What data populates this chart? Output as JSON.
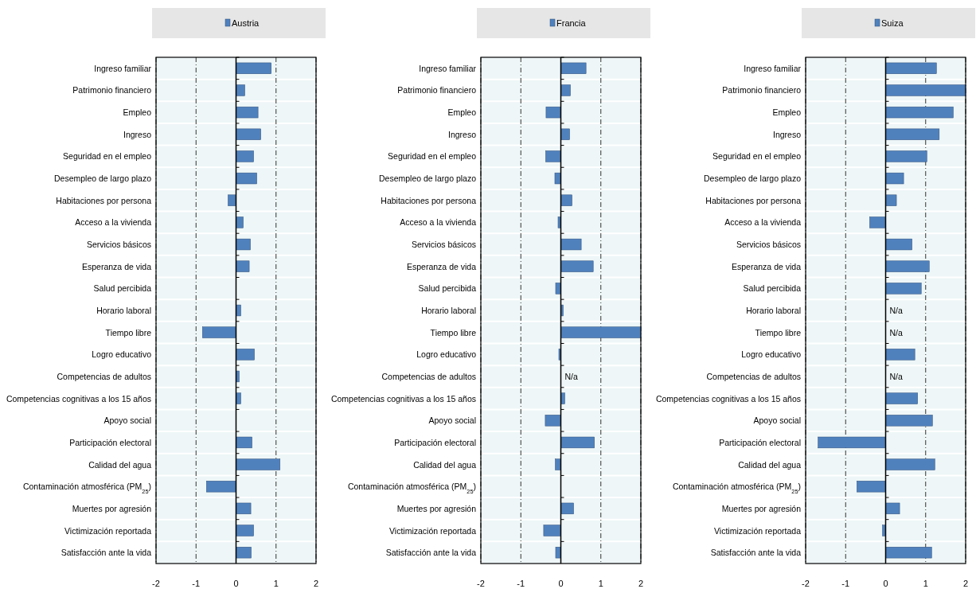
{
  "chart_data": [
    {
      "type": "bar",
      "orientation": "horizontal",
      "categories": [
        "Ingreso familiar",
        "Patrimonio financiero",
        "Empleo",
        "Ingreso",
        "Seguridad en el empleo",
        "Desempleo de largo plazo",
        "Habitaciones por persona",
        "Acceso a la vivienda",
        "Servicios básicos",
        "Esperanza de vida",
        "Salud percibida",
        "Horario laboral",
        "Tiempo libre",
        "Logro educativo",
        "Competencias de adultos",
        "Competencias cognitivas a los 15 años",
        "Apoyo social",
        "Participación electoral",
        "Calidad del agua",
        "Contaminación atmosférica (PM$_{25}$)",
        "Muertes por agresión",
        "Victimización reportada",
        "Satisfacción ante la vida"
      ],
      "series": [
        {
          "name": "Austria",
          "color": "#4f81bd",
          "values": [
            0.88,
            0.22,
            0.55,
            0.62,
            0.44,
            0.52,
            -0.2,
            0.18,
            0.36,
            0.33,
            0,
            0.12,
            -0.84,
            0.46,
            0.08,
            0.12,
            0,
            0.4,
            1.1,
            -0.74,
            0.37,
            0.44,
            0.38
          ]
        }
      ],
      "xlim": [
        -2,
        2
      ],
      "xticks": [
        -2,
        -1,
        0,
        1,
        2
      ],
      "grid": "x",
      "legend": "top"
    },
    {
      "type": "bar",
      "orientation": "horizontal",
      "categories": [
        "Ingreso familiar",
        "Patrimonio financiero",
        "Empleo",
        "Ingreso",
        "Seguridad en el empleo",
        "Desempleo de largo plazo",
        "Habitaciones por persona",
        "Acceso a la vivienda",
        "Servicios básicos",
        "Esperanza de vida",
        "Salud percibida",
        "Horario laboral",
        "Tiempo libre",
        "Logro educativo",
        "Competencias de adultos",
        "Competencias cognitivas a los 15 años",
        "Apoyo social",
        "Participación electoral",
        "Calidad del agua",
        "Contaminación atmosférica (PM$_{25}$)",
        "Muertes por agresión",
        "Victimización reportada",
        "Satisfacción ante la vida"
      ],
      "series": [
        {
          "name": "Francia",
          "color": "#4f81bd",
          "values": [
            0.63,
            0.24,
            -0.37,
            0.22,
            -0.38,
            -0.15,
            0.28,
            -0.07,
            0.51,
            0.81,
            -0.13,
            0.06,
            2,
            -0.05,
            null,
            0.1,
            -0.39,
            0.84,
            -0.14,
            0,
            0.32,
            -0.43,
            -0.13
          ],
          "value_labels": [
            null,
            null,
            null,
            null,
            null,
            null,
            null,
            null,
            null,
            null,
            null,
            null,
            null,
            null,
            "N/a",
            null,
            null,
            null,
            null,
            null,
            null,
            null,
            null
          ]
        }
      ],
      "xlim": [
        -2,
        2
      ],
      "xticks": [
        -2,
        -1,
        0,
        1,
        2
      ],
      "grid": "x",
      "legend": "top"
    },
    {
      "type": "bar",
      "orientation": "horizontal",
      "categories": [
        "Ingreso familiar",
        "Patrimonio financiero",
        "Empleo",
        "Ingreso",
        "Seguridad en el empleo",
        "Desempleo de largo plazo",
        "Habitaciones por persona",
        "Acceso a la vivienda",
        "Servicios básicos",
        "Esperanza de vida",
        "Salud percibida",
        "Horario laboral",
        "Tiempo libre",
        "Logro educativo",
        "Competencias de adultos",
        "Competencias cognitivas a los 15 años",
        "Apoyo social",
        "Participación electoral",
        "Calidad del agua",
        "Contaminación atmosférica (PM$_{25}$)",
        "Muertes por agresión",
        "Victimización reportada",
        "Satisfacción ante la vida"
      ],
      "series": [
        {
          "name": "Suiza",
          "color": "#4f81bd",
          "values": [
            1.27,
            2,
            1.69,
            1.34,
            1.03,
            0.45,
            0.27,
            -0.4,
            0.66,
            1.09,
            0.89,
            null,
            null,
            0.73,
            null,
            0.8,
            1.17,
            -1.69,
            1.23,
            -0.72,
            0.35,
            -0.08,
            1.15
          ],
          "value_labels": [
            null,
            null,
            null,
            null,
            null,
            null,
            null,
            null,
            null,
            null,
            null,
            "N/a",
            "N/a",
            null,
            "N/a",
            null,
            null,
            null,
            null,
            null,
            null,
            null,
            null
          ]
        }
      ],
      "xlim": [
        -2,
        2
      ],
      "xticks": [
        -2,
        -1,
        0,
        1,
        2
      ],
      "grid": "x",
      "legend": "top"
    }
  ]
}
